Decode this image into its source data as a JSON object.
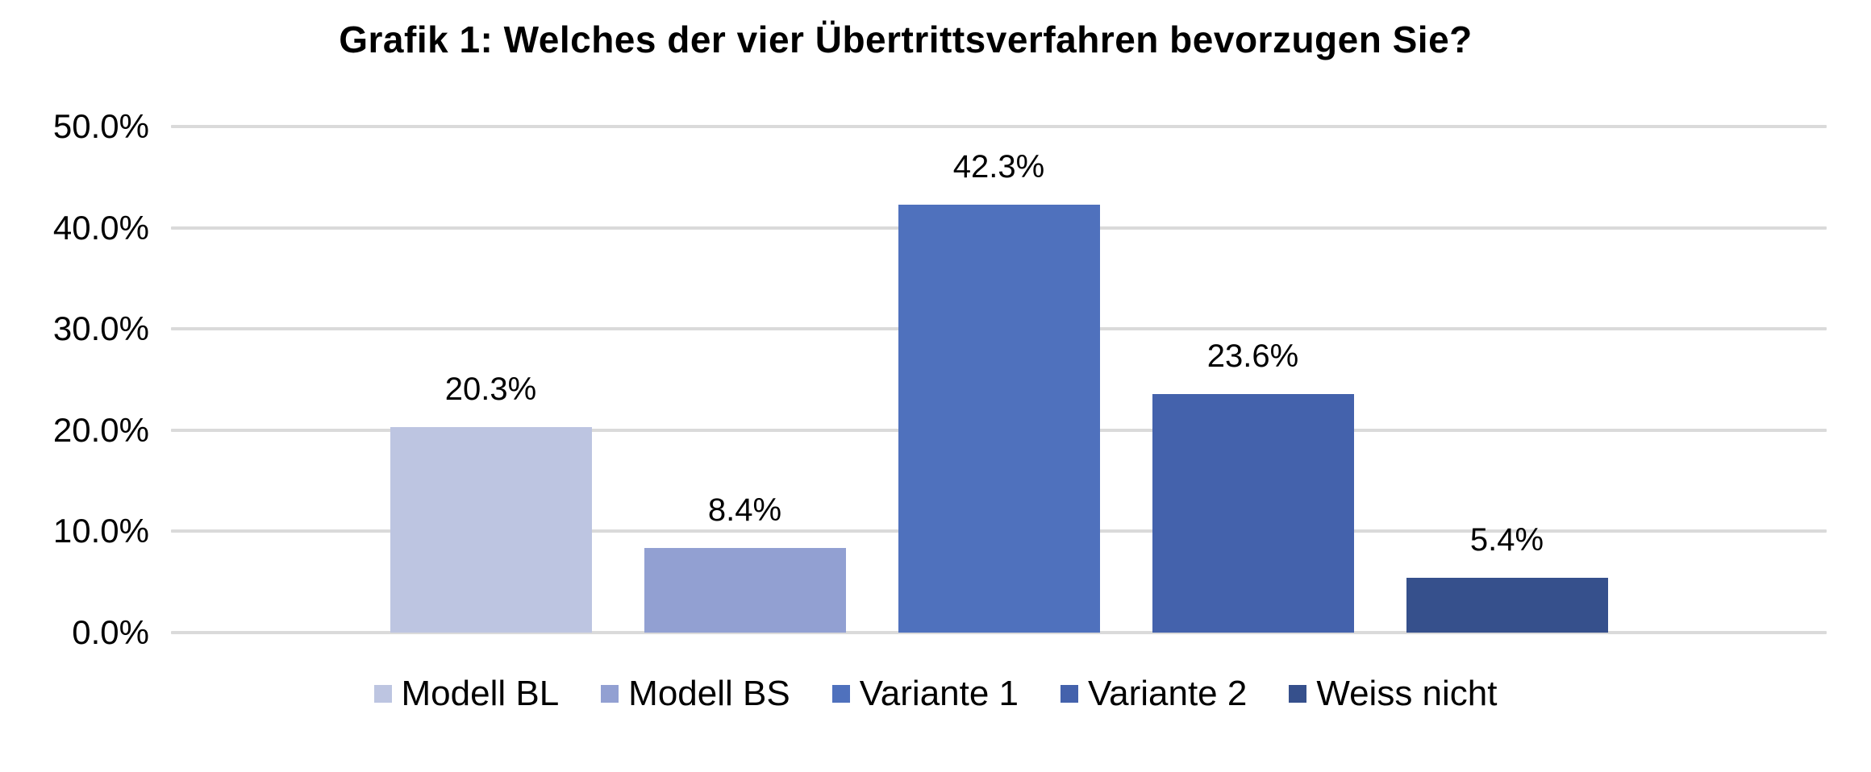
{
  "chart_data": {
    "type": "bar",
    "title": "Grafik 1: Welches der vier Übertrittsverfahren bevorzugen Sie?",
    "categories": [
      "Modell BL",
      "Modell BS",
      "Variante 1",
      "Variante 2",
      "Weiss nicht"
    ],
    "values": [
      20.3,
      8.4,
      42.3,
      23.6,
      5.4
    ],
    "value_labels": [
      "20.3%",
      "8.4%",
      "42.3%",
      "23.6%",
      "5.4%"
    ],
    "bar_colors": [
      "#BDC5E1",
      "#92A0D2",
      "#4F71BD",
      "#4462AC",
      "#36508C"
    ],
    "yticks": [
      0,
      10,
      20,
      30,
      40,
      50
    ],
    "ytick_labels": [
      "0.0%",
      "10.0%",
      "20.0%",
      "30.0%",
      "40.0%",
      "50.0%"
    ],
    "ylim": [
      0,
      50
    ],
    "xlabel": "",
    "ylabel": "",
    "grid": true,
    "legend_position": "bottom",
    "colors": {
      "gridline": "#DADADA",
      "background": "#FFFFFF",
      "text": "#000000"
    }
  }
}
